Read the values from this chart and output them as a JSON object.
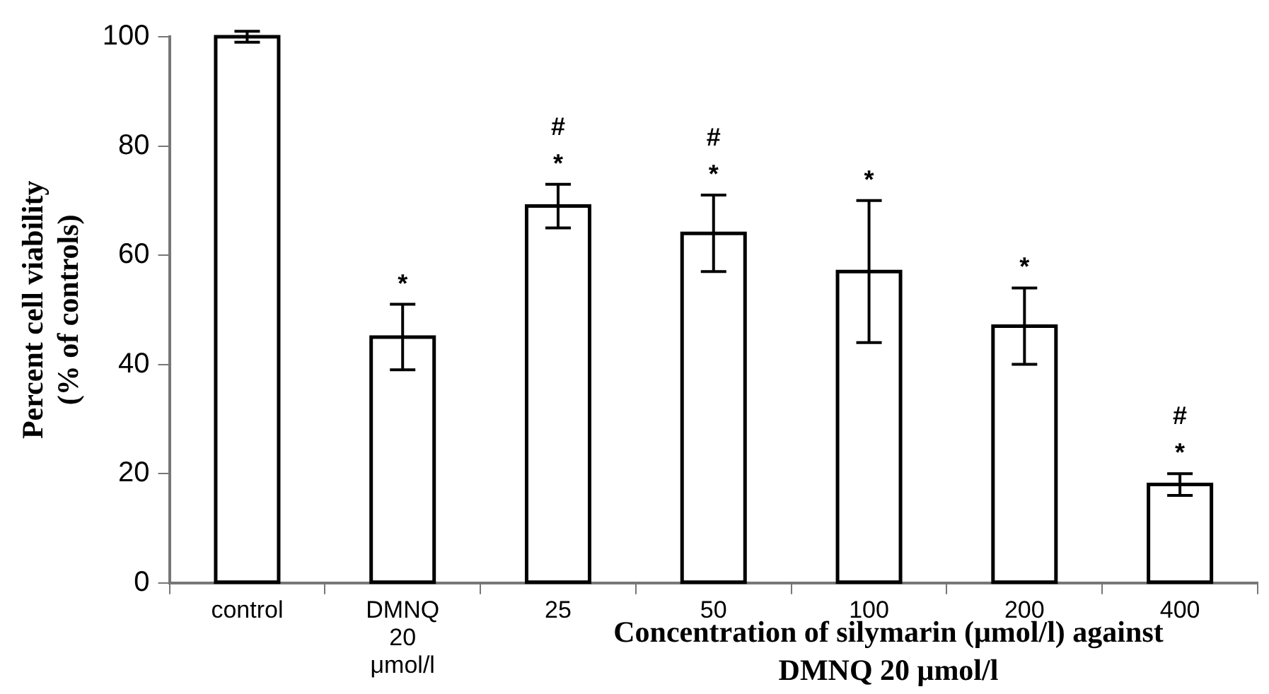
{
  "chart_data": {
    "type": "bar",
    "ylabel": "Percent cell viability (% of controls)",
    "xlabel": "Concentration of silymarin (μmol/l) against DMNQ 20 μmol/l",
    "categories": [
      "control",
      "DMNQ 20 μmol/l",
      "25",
      "50",
      "100",
      "200",
      "400"
    ],
    "values": [
      100,
      45,
      69,
      64,
      57,
      47,
      18
    ],
    "errors": [
      1,
      6,
      4,
      7,
      13,
      7,
      2
    ],
    "color": "#000000",
    "ylim": [
      0,
      100
    ],
    "yticks": [
      0,
      20,
      40,
      60,
      80,
      100
    ],
    "grid": false,
    "legend": false,
    "annotations": [
      {
        "text": "*",
        "x": "DMNQ 20 μmol/l",
        "y": 51
      },
      {
        "text": "*",
        "x": "25",
        "y": 73
      },
      {
        "text": "#",
        "x": "25",
        "y": 73
      },
      {
        "text": "*",
        "x": "50",
        "y": 71
      },
      {
        "text": "#",
        "x": "50",
        "y": 71
      },
      {
        "text": "*",
        "x": "100",
        "y": 70
      },
      {
        "text": "*",
        "x": "200",
        "y": 54
      },
      {
        "text": "*",
        "x": "400",
        "y": 20
      },
      {
        "text": "#",
        "x": "400",
        "y": 20
      }
    ]
  }
}
